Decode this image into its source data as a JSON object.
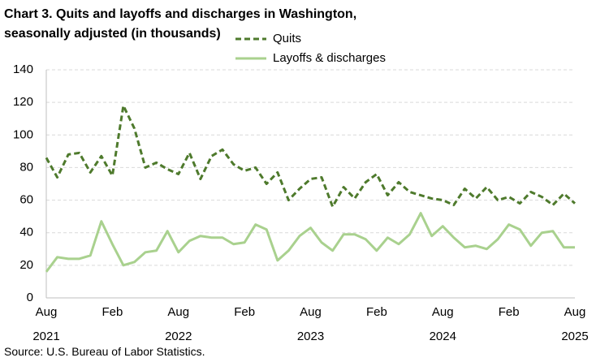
{
  "chart_data": {
    "type": "line",
    "title": "Chart 3. Quits and layoffs and discharges in Washington, seasonally adjusted (in thousands)",
    "source": "Source: U.S. Bureau of Labor Statistics.",
    "categories": [
      "Aug 2021",
      null,
      null,
      null,
      null,
      null,
      "Feb",
      null,
      null,
      null,
      null,
      null,
      "Aug 2022",
      null,
      null,
      null,
      null,
      null,
      "Feb",
      null,
      null,
      null,
      null,
      null,
      "Aug 2023",
      null,
      null,
      null,
      null,
      null,
      "Feb",
      null,
      null,
      null,
      null,
      null,
      "Aug 2024",
      null,
      null,
      null,
      null,
      null,
      "Feb",
      null,
      null,
      null,
      null,
      null,
      "Aug 2025"
    ],
    "series": [
      {
        "name": "Quits",
        "color": "#4e7a2c",
        "dashed": true,
        "values": [
          86,
          74,
          88,
          89,
          77,
          87,
          75,
          118,
          104,
          80,
          83,
          79,
          76,
          89,
          73,
          87,
          91,
          82,
          78,
          80,
          70,
          77,
          60,
          67,
          73,
          74,
          56,
          68,
          61,
          71,
          76,
          63,
          71,
          65,
          63,
          61,
          60,
          57,
          67,
          61,
          68,
          60,
          62,
          58,
          65,
          62,
          57,
          64,
          58
        ]
      },
      {
        "name": "Layoffs & discharges",
        "color": "#a9d18e",
        "dashed": false,
        "values": [
          16,
          25,
          24,
          24,
          26,
          47,
          33,
          20,
          22,
          28,
          29,
          41,
          28,
          35,
          38,
          37,
          37,
          33,
          34,
          45,
          42,
          23,
          29,
          38,
          43,
          34,
          29,
          39,
          39,
          36,
          29,
          37,
          33,
          39,
          52,
          38,
          44,
          37,
          31,
          32,
          30,
          36,
          45,
          42,
          32,
          40,
          41,
          31,
          31
        ]
      }
    ],
    "ylim": [
      0,
      140
    ],
    "yticks": [
      0,
      20,
      40,
      60,
      80,
      100,
      120,
      140
    ],
    "grid": true,
    "legend": "top"
  }
}
